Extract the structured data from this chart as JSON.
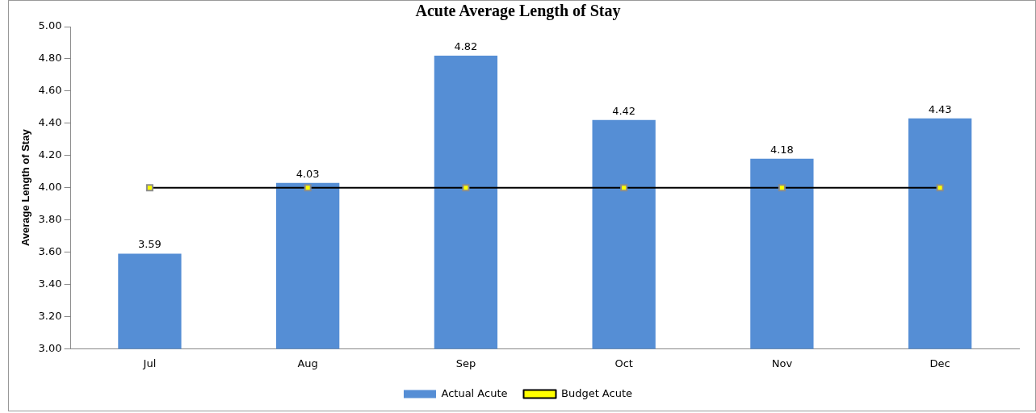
{
  "chart_data": {
    "type": "bar",
    "title": "Acute Average Length of Stay",
    "ylabel": "Average Length of Stay",
    "categories": [
      "Jul",
      "Aug",
      "Sep",
      "Oct",
      "Nov",
      "Dec"
    ],
    "series": [
      {
        "name": "Actual Acute",
        "color": "#558ed5",
        "values": [
          3.59,
          4.03,
          4.82,
          4.42,
          4.18,
          4.43
        ],
        "value_labels": [
          "3.59",
          "4.03",
          "4.82",
          "4.42",
          "4.18",
          "4.43"
        ]
      },
      {
        "name": "Budget Acute",
        "type": "line",
        "color": "#000000",
        "marker": "square",
        "values": [
          4.0,
          4.0,
          4.0,
          4.0,
          4.0,
          4.0
        ]
      }
    ],
    "ylim": [
      3.0,
      5.0
    ],
    "yticks": [
      {
        "value": 3.0,
        "label": "3.00"
      },
      {
        "value": 3.2,
        "label": "3.20"
      },
      {
        "value": 3.4,
        "label": "3.40"
      },
      {
        "value": 3.6,
        "label": "3.60"
      },
      {
        "value": 3.8,
        "label": "3.80"
      },
      {
        "value": 4.0,
        "label": "4.00"
      },
      {
        "value": 4.2,
        "label": "4.20"
      },
      {
        "value": 4.4,
        "label": "4.40"
      },
      {
        "value": 4.6,
        "label": "4.60"
      },
      {
        "value": 4.8,
        "label": "4.80"
      },
      {
        "value": 5.0,
        "label": "5.00"
      }
    ],
    "grid": false,
    "legend": "bottom"
  }
}
